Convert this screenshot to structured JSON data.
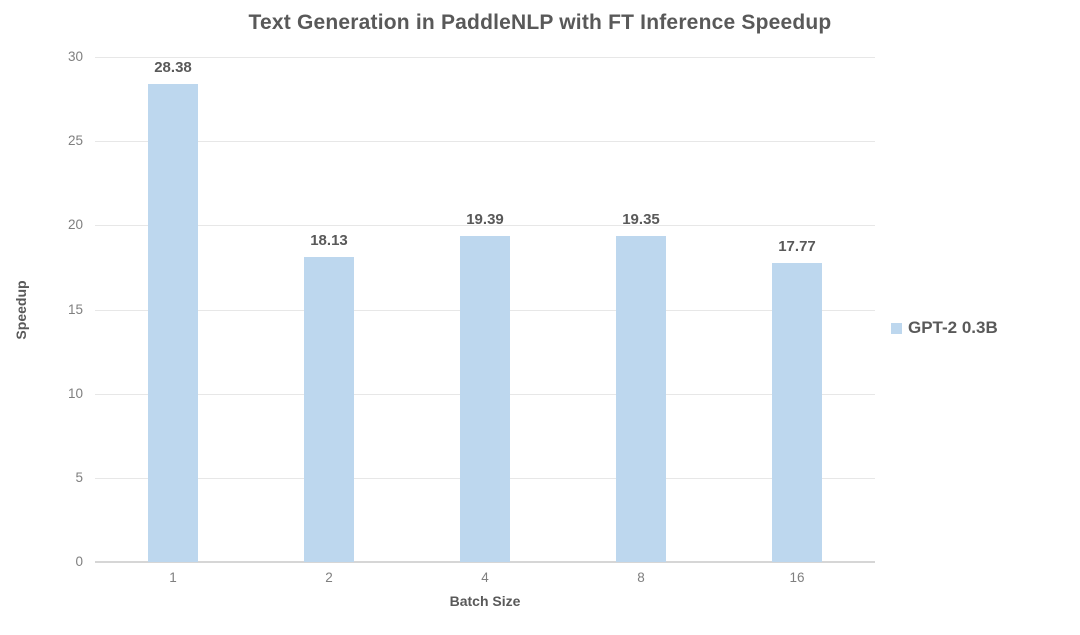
{
  "chart_data": {
    "type": "bar",
    "title": "Text Generation in PaddleNLP with FT Inference Speedup",
    "categories": [
      "1",
      "2",
      "4",
      "8",
      "16"
    ],
    "series": [
      {
        "name": "GPT-2 0.3B",
        "values": [
          28.38,
          18.13,
          19.39,
          19.35,
          17.77
        ]
      }
    ],
    "data_labels": [
      "28.38",
      "18.13",
      "19.39",
      "19.35",
      "17.77"
    ],
    "xlabel": "Batch Size",
    "ylabel": "Speedup",
    "ylim": [
      0,
      30
    ],
    "ytick_step": 5,
    "ytick_labels": [
      "0",
      "5",
      "10",
      "15",
      "20",
      "25",
      "30"
    ],
    "grid": true,
    "legend_position": "right",
    "colors": {
      "bar_fill": "#BDD7EE",
      "title_text": "#595959",
      "axis_title_text": "#595959",
      "tick_label_text": "#7F7F7F",
      "data_label_text": "#595959",
      "gridline": "#E7E7E7",
      "baseline": "#D6D6D6",
      "legend_text": "#595959",
      "background": "#FFFFFF"
    }
  }
}
